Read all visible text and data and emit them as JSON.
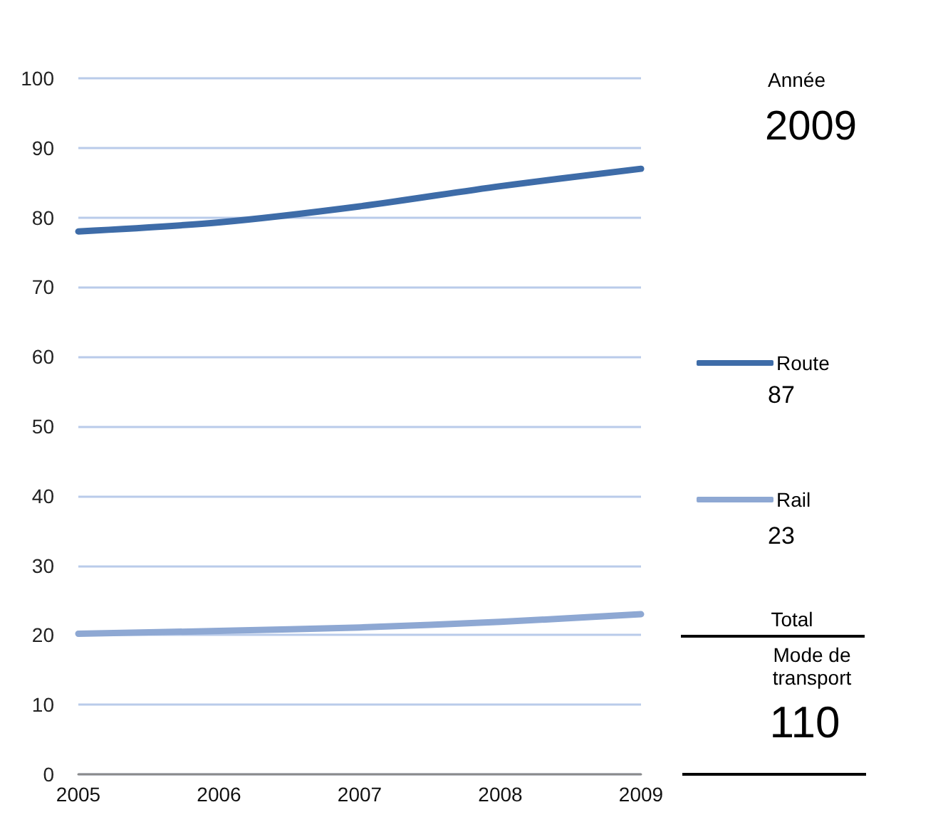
{
  "chart_data": {
    "type": "line",
    "categories": [
      "2005",
      "2006",
      "2007",
      "2008",
      "2009"
    ],
    "series": [
      {
        "name": "Route",
        "color": "#3e6ca8",
        "values": [
          78,
          79.3,
          81.6,
          84.5,
          87
        ]
      },
      {
        "name": "Rail",
        "color": "#8ea8d3",
        "values": [
          20.2,
          20.6,
          21.1,
          21.9,
          23
        ]
      }
    ],
    "ylim": [
      0,
      100
    ],
    "yticks": [
      0,
      10,
      20,
      30,
      40,
      50,
      60,
      70,
      80,
      90,
      100
    ],
    "grid": "y",
    "legend": "right",
    "marker": "none",
    "line_style": "solid",
    "annotations": [
      "Année",
      "2009",
      "87",
      "23",
      "Total",
      "Mode de transport",
      "110"
    ]
  }
}
